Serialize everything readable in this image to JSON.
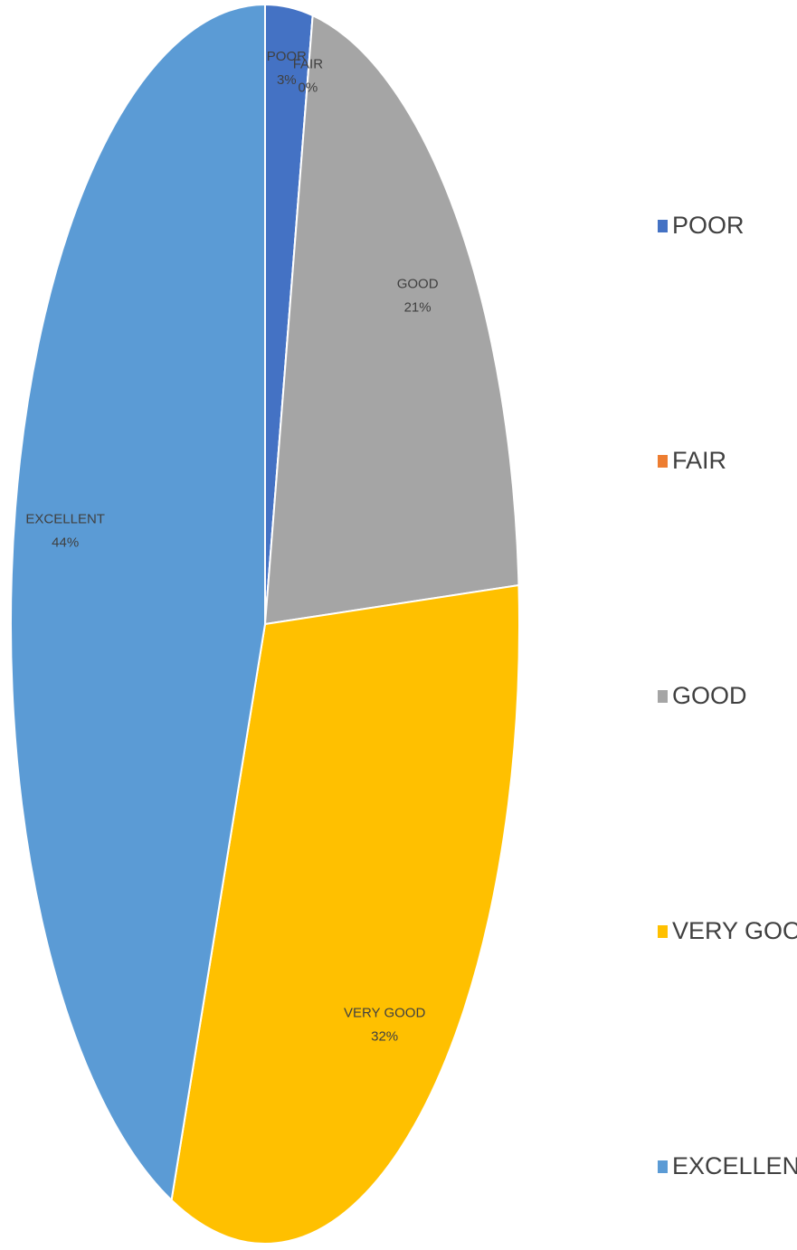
{
  "chart_data": {
    "type": "pie",
    "categories": [
      "POOR",
      "FAIR",
      "GOOD",
      "VERY GOOD",
      "EXCELLENT"
    ],
    "values": [
      3,
      0,
      21,
      32,
      44
    ],
    "value_labels": [
      "3%",
      "0%",
      "21%",
      "32%",
      "44%"
    ],
    "colors": [
      "#4472c4",
      "#ed7d31",
      "#a5a5a5",
      "#ffc000",
      "#5b9bd5"
    ],
    "legend": "right"
  }
}
